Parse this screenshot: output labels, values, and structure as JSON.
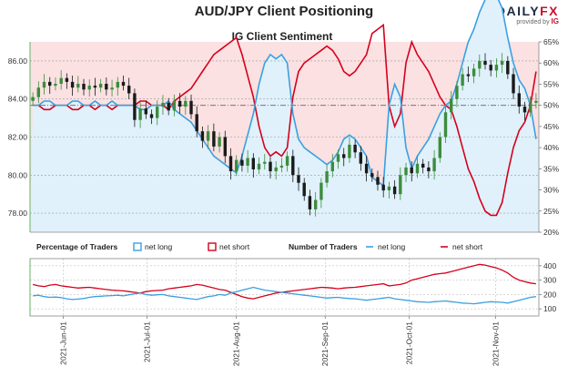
{
  "header": {
    "title": "AUD/JPY Client Positioning",
    "logo_daily": "DAILY",
    "logo_fx": "FX",
    "logo_provided": "provided by",
    "logo_ig": "IG"
  },
  "colors": {
    "net_long_fill": "#e0f1fb",
    "net_short_fill": "#fbe1e2",
    "net_long_line": "#3aa0e0",
    "net_short_line": "#d6001c",
    "candle_up": "#3c8d3c",
    "candle_down": "#1a1a1a",
    "axis_green": "#66b266"
  },
  "chart_data": [
    {
      "type": "candlestick",
      "title": "IG Client Sentiment",
      "y_left_ticks": [
        "78.00",
        "80.00",
        "82.00",
        "84.00",
        "86.00"
      ],
      "y_right_ticks": [
        "20%",
        "25%",
        "30%",
        "35%",
        "40%",
        "45%",
        "50%",
        "55%",
        "60%",
        "65%"
      ],
      "ylim_price": [
        77,
        87
      ],
      "ylim_percent": [
        20,
        65
      ],
      "reference_line_pct": 50,
      "grid": true,
      "series": [
        {
          "name": "AUD/JPY",
          "unit": "price",
          "close": [
            84.1,
            84.6,
            84.9,
            84.7,
            84.8,
            85.1,
            84.9,
            84.6,
            84.8,
            84.5,
            84.7,
            84.6,
            84.8,
            84.5,
            84.6,
            84.9,
            84.7,
            84.3,
            82.9,
            83.5,
            83.2,
            83.0,
            83.6,
            83.8,
            83.4,
            83.9,
            83.6,
            83.9,
            83.2,
            82.3,
            81.8,
            82.3,
            81.5,
            82.0,
            81.0,
            80.2,
            80.8,
            80.5,
            80.9,
            80.3,
            80.6,
            80.7,
            80.2,
            80.4,
            80.5,
            81.0,
            80.0,
            79.6,
            78.9,
            78.2,
            78.7,
            79.6,
            80.2,
            80.7,
            81.1,
            80.9,
            81.6,
            81.2,
            80.6,
            80.1,
            79.9,
            79.5,
            79.2,
            79.4,
            79.0,
            80.0,
            80.4,
            80.1,
            80.6,
            80.4,
            80.2,
            80.9,
            82.0,
            83.3,
            84.0,
            84.7,
            85.3,
            85.2,
            85.6,
            86.0,
            85.8,
            85.5,
            85.8,
            86.0,
            85.3,
            84.3,
            83.6,
            83.3,
            83.8,
            83.9
          ]
        },
        {
          "name": "net long",
          "unit": "%",
          "values": [
            50,
            50,
            51,
            51,
            50,
            50,
            50,
            51,
            51,
            50,
            50,
            51,
            50,
            50,
            51,
            50,
            50,
            50,
            50,
            49,
            49,
            50,
            50,
            50,
            51,
            49,
            48,
            47,
            46,
            44,
            42,
            40,
            38,
            37,
            36,
            35,
            34,
            38,
            43,
            48,
            55,
            60,
            62,
            61,
            62,
            60,
            48,
            42,
            40,
            39,
            38,
            37,
            36,
            37,
            39,
            42,
            43,
            42,
            40,
            38,
            33,
            32,
            31,
            50,
            55,
            52,
            40,
            35,
            38,
            40,
            42,
            45,
            48,
            50,
            51,
            55,
            60,
            65,
            68,
            72,
            75,
            76,
            76,
            73,
            66,
            60,
            56,
            54,
            50,
            42
          ]
        },
        {
          "name": "net short",
          "unit": "%",
          "values": [
            50,
            50,
            49,
            49,
            50,
            50,
            50,
            49,
            49,
            50,
            50,
            49,
            50,
            50,
            49,
            50,
            50,
            50,
            50,
            51,
            51,
            50,
            50,
            50,
            49,
            51,
            52,
            53,
            54,
            56,
            58,
            60,
            62,
            63,
            64,
            65,
            66,
            62,
            57,
            52,
            45,
            40,
            38,
            39,
            38,
            40,
            52,
            58,
            60,
            61,
            62,
            63,
            64,
            63,
            61,
            58,
            57,
            58,
            60,
            62,
            67,
            68,
            69,
            50,
            45,
            48,
            60,
            65,
            62,
            60,
            58,
            55,
            52,
            50,
            49,
            45,
            40,
            35,
            32,
            28,
            25,
            24,
            24,
            27,
            34,
            40,
            44,
            46,
            50,
            58
          ]
        }
      ]
    },
    {
      "type": "line",
      "y_ticks": [
        "100",
        "200",
        "300",
        "400"
      ],
      "ylim": [
        50,
        450
      ],
      "x_ticks": [
        "2021-Jun-01",
        "2021-Jul-01",
        "2021-Aug-01",
        "2021-Sep-01",
        "2021-Oct-01",
        "2021-Nov-01"
      ],
      "series": [
        {
          "name": "net long",
          "values": [
            190,
            195,
            185,
            180,
            182,
            178,
            170,
            165,
            168,
            172,
            180,
            185,
            188,
            190,
            192,
            195,
            190,
            198,
            205,
            210,
            200,
            195,
            198,
            200,
            190,
            185,
            180,
            175,
            170,
            165,
            175,
            185,
            190,
            200,
            195,
            210,
            220,
            230,
            240,
            250,
            240,
            230,
            225,
            220,
            215,
            210,
            205,
            200,
            195,
            190,
            185,
            180,
            175,
            178,
            180,
            175,
            172,
            170,
            165,
            160,
            165,
            170,
            175,
            180,
            170,
            165,
            160,
            155,
            150,
            148,
            145,
            150,
            152,
            155,
            150,
            145,
            140,
            138,
            135,
            140,
            145,
            150,
            148,
            145,
            140,
            150,
            160,
            170,
            180,
            185
          ]
        },
        {
          "name": "net short",
          "values": [
            270,
            260,
            255,
            265,
            270,
            260,
            255,
            250,
            245,
            248,
            250,
            245,
            240,
            235,
            230,
            228,
            225,
            220,
            215,
            210,
            220,
            225,
            228,
            230,
            240,
            245,
            250,
            255,
            260,
            270,
            265,
            255,
            245,
            235,
            230,
            215,
            200,
            185,
            175,
            170,
            180,
            190,
            200,
            210,
            215,
            220,
            225,
            230,
            235,
            240,
            245,
            250,
            248,
            245,
            240,
            245,
            248,
            250,
            255,
            260,
            265,
            270,
            275,
            260,
            265,
            270,
            280,
            300,
            310,
            320,
            330,
            340,
            345,
            350,
            360,
            370,
            380,
            390,
            400,
            410,
            405,
            395,
            385,
            370,
            350,
            320,
            300,
            290,
            280,
            275
          ]
        }
      ]
    }
  ],
  "legend": {
    "pct_title": "Percentage of Traders",
    "pct_long": "net long",
    "pct_short": "net short",
    "num_title": "Number of Traders",
    "num_long": "net long",
    "num_short": "net short"
  }
}
